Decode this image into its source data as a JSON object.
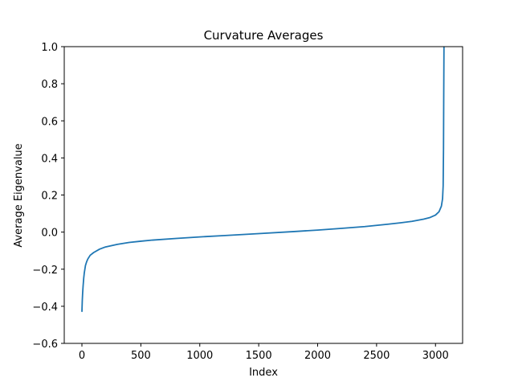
{
  "chart_data": {
    "type": "line",
    "title": "Curvature Averages",
    "xlabel": "Index",
    "ylabel": "Average Eigenvalue",
    "xlim": [
      -150,
      3230
    ],
    "ylim": [
      -0.6,
      1.0
    ],
    "xticks": [
      0,
      500,
      1000,
      1500,
      2000,
      2500,
      3000
    ],
    "xtick_labels": [
      "0",
      "500",
      "1000",
      "1500",
      "2000",
      "2500",
      "3000"
    ],
    "yticks": [
      -0.6,
      -0.4,
      -0.2,
      0.0,
      0.2,
      0.4,
      0.6,
      0.8,
      1.0
    ],
    "ytick_labels": [
      "−0.6",
      "−0.4",
      "−0.2",
      "0.0",
      "0.2",
      "0.4",
      "0.6",
      "0.8",
      "1.0"
    ],
    "grid": false,
    "series": [
      {
        "color": "#1f77b4",
        "x": [
          0,
          3,
          6,
          10,
          15,
          20,
          30,
          40,
          50,
          70,
          100,
          150,
          200,
          300,
          400,
          500,
          600,
          800,
          1000,
          1200,
          1500,
          1800,
          2000,
          2200,
          2400,
          2600,
          2700,
          2800,
          2900,
          2950,
          3000,
          3030,
          3050,
          3060,
          3065,
          3068,
          3070,
          3072
        ],
        "y": [
          -0.43,
          -0.37,
          -0.33,
          -0.29,
          -0.25,
          -0.22,
          -0.18,
          -0.16,
          -0.145,
          -0.125,
          -0.11,
          -0.092,
          -0.08,
          -0.066,
          -0.056,
          -0.049,
          -0.043,
          -0.034,
          -0.026,
          -0.019,
          -0.008,
          0.003,
          0.011,
          0.02,
          0.03,
          0.043,
          0.05,
          0.058,
          0.07,
          0.078,
          0.092,
          0.11,
          0.14,
          0.18,
          0.25,
          0.45,
          0.75,
          1.0
        ]
      }
    ]
  }
}
